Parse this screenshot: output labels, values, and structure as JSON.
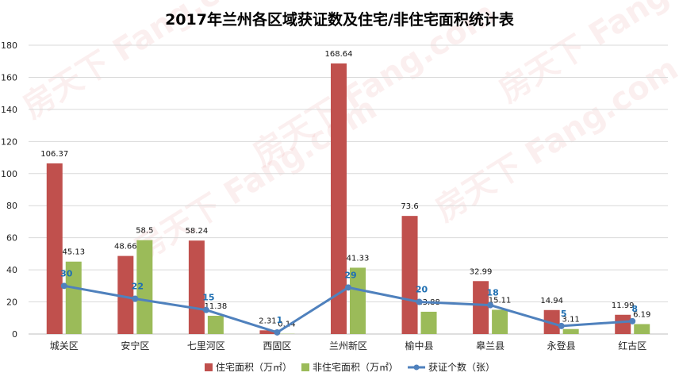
{
  "chart_data": {
    "type": "bar",
    "title": "2017年兰州各区域获证数及住宅/非住宅面积统计表",
    "categories": [
      "城关区",
      "安宁区",
      "七里河区",
      "西固区",
      "兰州新区",
      "榆中县",
      "皋兰县",
      "永登县",
      "红古区"
    ],
    "series": [
      {
        "name": "住宅面积（万㎡）",
        "kind": "bar",
        "color": "#c0504d",
        "values": [
          106.37,
          48.66,
          58.24,
          2.31,
          168.64,
          73.6,
          32.99,
          14.94,
          11.99
        ]
      },
      {
        "name": "非住宅面积（万㎡）",
        "kind": "bar",
        "color": "#9bbb59",
        "values": [
          45.13,
          58.5,
          11.38,
          0.14,
          41.33,
          13.88,
          15.11,
          3.11,
          6.19
        ]
      },
      {
        "name": "获证个数（张）",
        "kind": "line",
        "color": "#4f81bd",
        "values": [
          30,
          22,
          15,
          1,
          29,
          20,
          18,
          5,
          8
        ]
      }
    ],
    "ylim": [
      0,
      180
    ],
    "yticks": [
      0,
      20,
      40,
      60,
      80,
      100,
      120,
      140,
      160,
      180
    ],
    "grid": true,
    "legend_position": "bottom"
  },
  "watermark": "房天下 Fang.com"
}
